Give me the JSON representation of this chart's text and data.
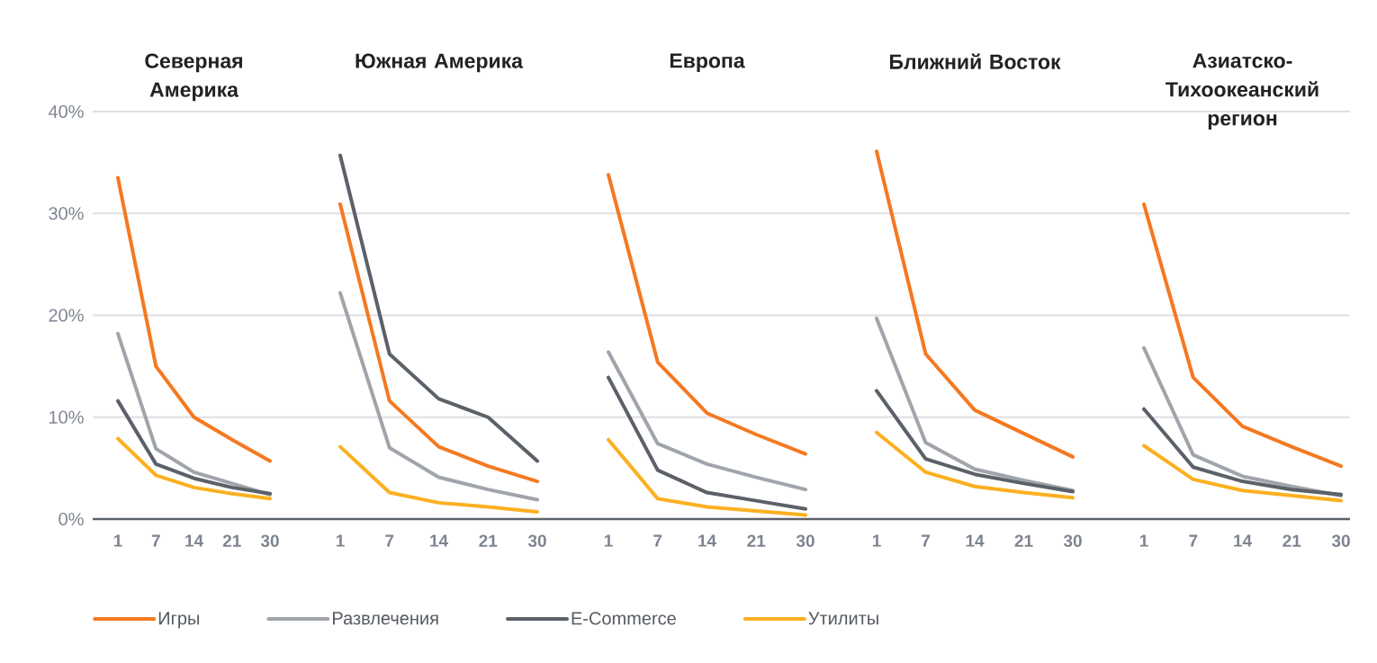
{
  "chart_data": [
    {
      "type": "line",
      "title": "Северная Америка",
      "categories": [
        "1",
        "7",
        "14",
        "21",
        "30"
      ],
      "ylim": [
        0,
        40
      ],
      "yticks": [
        {
          "value": 0,
          "label": "0%"
        },
        {
          "value": 10,
          "label": "10%"
        },
        {
          "value": 20,
          "label": "20%"
        },
        {
          "value": 30,
          "label": "30%"
        },
        {
          "value": 40,
          "label": "40%"
        }
      ],
      "grid": "y",
      "legend": "bottom",
      "series": [
        {
          "name": "Игры",
          "color": "#f47920",
          "values": [
            33.5,
            15.0,
            10.0,
            7.8,
            5.7
          ]
        },
        {
          "name": "Развлечения",
          "color": "#a0a4ab",
          "values": [
            18.2,
            6.9,
            4.6,
            3.5,
            2.4
          ]
        },
        {
          "name": "E-Commerce",
          "color": "#5b6168",
          "values": [
            11.6,
            5.4,
            4.0,
            3.1,
            2.5
          ]
        },
        {
          "name": "Утилиты",
          "color": "#fbb021",
          "values": [
            7.9,
            4.3,
            3.1,
            2.5,
            2.0
          ]
        }
      ]
    },
    {
      "type": "line",
      "title": "Южная Америка",
      "categories": [
        "1",
        "7",
        "14",
        "21",
        "30"
      ],
      "ylim": [
        0,
        40
      ],
      "yticks": [
        {
          "value": 0,
          "label": null
        },
        {
          "value": 10,
          "label": null
        },
        {
          "value": 20,
          "label": null
        },
        {
          "value": 30,
          "label": null
        },
        {
          "value": 40,
          "label": null
        }
      ],
      "grid": "y",
      "tick_labels": "x",
      "series": [
        {
          "color": "#f47920",
          "values": [
            30.9,
            11.6,
            7.1,
            5.2,
            3.7
          ]
        },
        {
          "color": "#a0a4ab",
          "values": [
            22.2,
            7.0,
            4.1,
            2.9,
            1.9
          ]
        },
        {
          "color": "#5b6168",
          "values": [
            35.7,
            16.2,
            11.8,
            10.0,
            5.7
          ]
        },
        {
          "color": "#fbb021",
          "values": [
            7.1,
            2.6,
            1.6,
            1.2,
            0.7
          ]
        }
      ]
    },
    {
      "type": "line",
      "title": "Европа",
      "categories": [
        "1",
        "7",
        "14",
        "21",
        "30"
      ],
      "ylim": [
        0,
        40
      ],
      "yticks": [
        {
          "value": 0,
          "label": null
        },
        {
          "value": 10,
          "label": null
        },
        {
          "value": 20,
          "label": null
        },
        {
          "value": 30,
          "label": null
        },
        {
          "value": 40,
          "label": null
        }
      ],
      "grid": "y",
      "tick_labels": "x",
      "series": [
        {
          "color": "#f47920",
          "values": [
            33.8,
            15.4,
            10.4,
            8.3,
            6.4
          ]
        },
        {
          "color": "#a0a4ab",
          "values": [
            16.4,
            7.4,
            5.4,
            4.1,
            2.9
          ]
        },
        {
          "color": "#5b6168",
          "values": [
            13.9,
            4.8,
            2.6,
            1.8,
            1.0
          ]
        },
        {
          "color": "#fbb021",
          "values": [
            7.8,
            2.0,
            1.2,
            0.8,
            0.4
          ]
        }
      ]
    },
    {
      "type": "line",
      "title": "Ближний Восток",
      "categories": [
        "1",
        "7",
        "14",
        "21",
        "30"
      ],
      "ylim": [
        0,
        40
      ],
      "yticks": [
        {
          "value": 0,
          "label": null
        },
        {
          "value": 10,
          "label": null
        },
        {
          "value": 20,
          "label": null
        },
        {
          "value": 30,
          "label": null
        },
        {
          "value": 40,
          "label": null
        }
      ],
      "grid": "y",
      "tick_labels": "x",
      "series": [
        {
          "color": "#f47920",
          "values": [
            36.1,
            16.2,
            10.7,
            8.4,
            6.1
          ]
        },
        {
          "color": "#a0a4ab",
          "values": [
            19.7,
            7.5,
            4.9,
            3.8,
            2.8
          ]
        },
        {
          "color": "#5b6168",
          "values": [
            12.6,
            5.9,
            4.4,
            3.5,
            2.7
          ]
        },
        {
          "color": "#fbb021",
          "values": [
            8.5,
            4.6,
            3.2,
            2.6,
            2.1
          ]
        }
      ]
    },
    {
      "type": "line",
      "title": "Азиатско-Тихоокеанский регион",
      "categories": [
        "1",
        "7",
        "14",
        "21",
        "30"
      ],
      "ylim": [
        0,
        40
      ],
      "yticks": [
        {
          "value": 0,
          "label": null
        },
        {
          "value": 10,
          "label": null
        },
        {
          "value": 20,
          "label": null
        },
        {
          "value": 30,
          "label": null
        },
        {
          "value": 40,
          "label": null
        }
      ],
      "grid": "y",
      "tick_labels": "x",
      "series": [
        {
          "color": "#f47920",
          "values": [
            30.9,
            13.9,
            9.1,
            7.1,
            5.2
          ]
        },
        {
          "color": "#a0a4ab",
          "values": [
            16.8,
            6.3,
            4.2,
            3.2,
            2.3
          ]
        },
        {
          "color": "#5b6168",
          "values": [
            10.8,
            5.1,
            3.7,
            2.9,
            2.4
          ]
        },
        {
          "color": "#fbb021",
          "values": [
            7.2,
            3.9,
            2.8,
            2.3,
            1.8
          ]
        }
      ]
    }
  ]
}
